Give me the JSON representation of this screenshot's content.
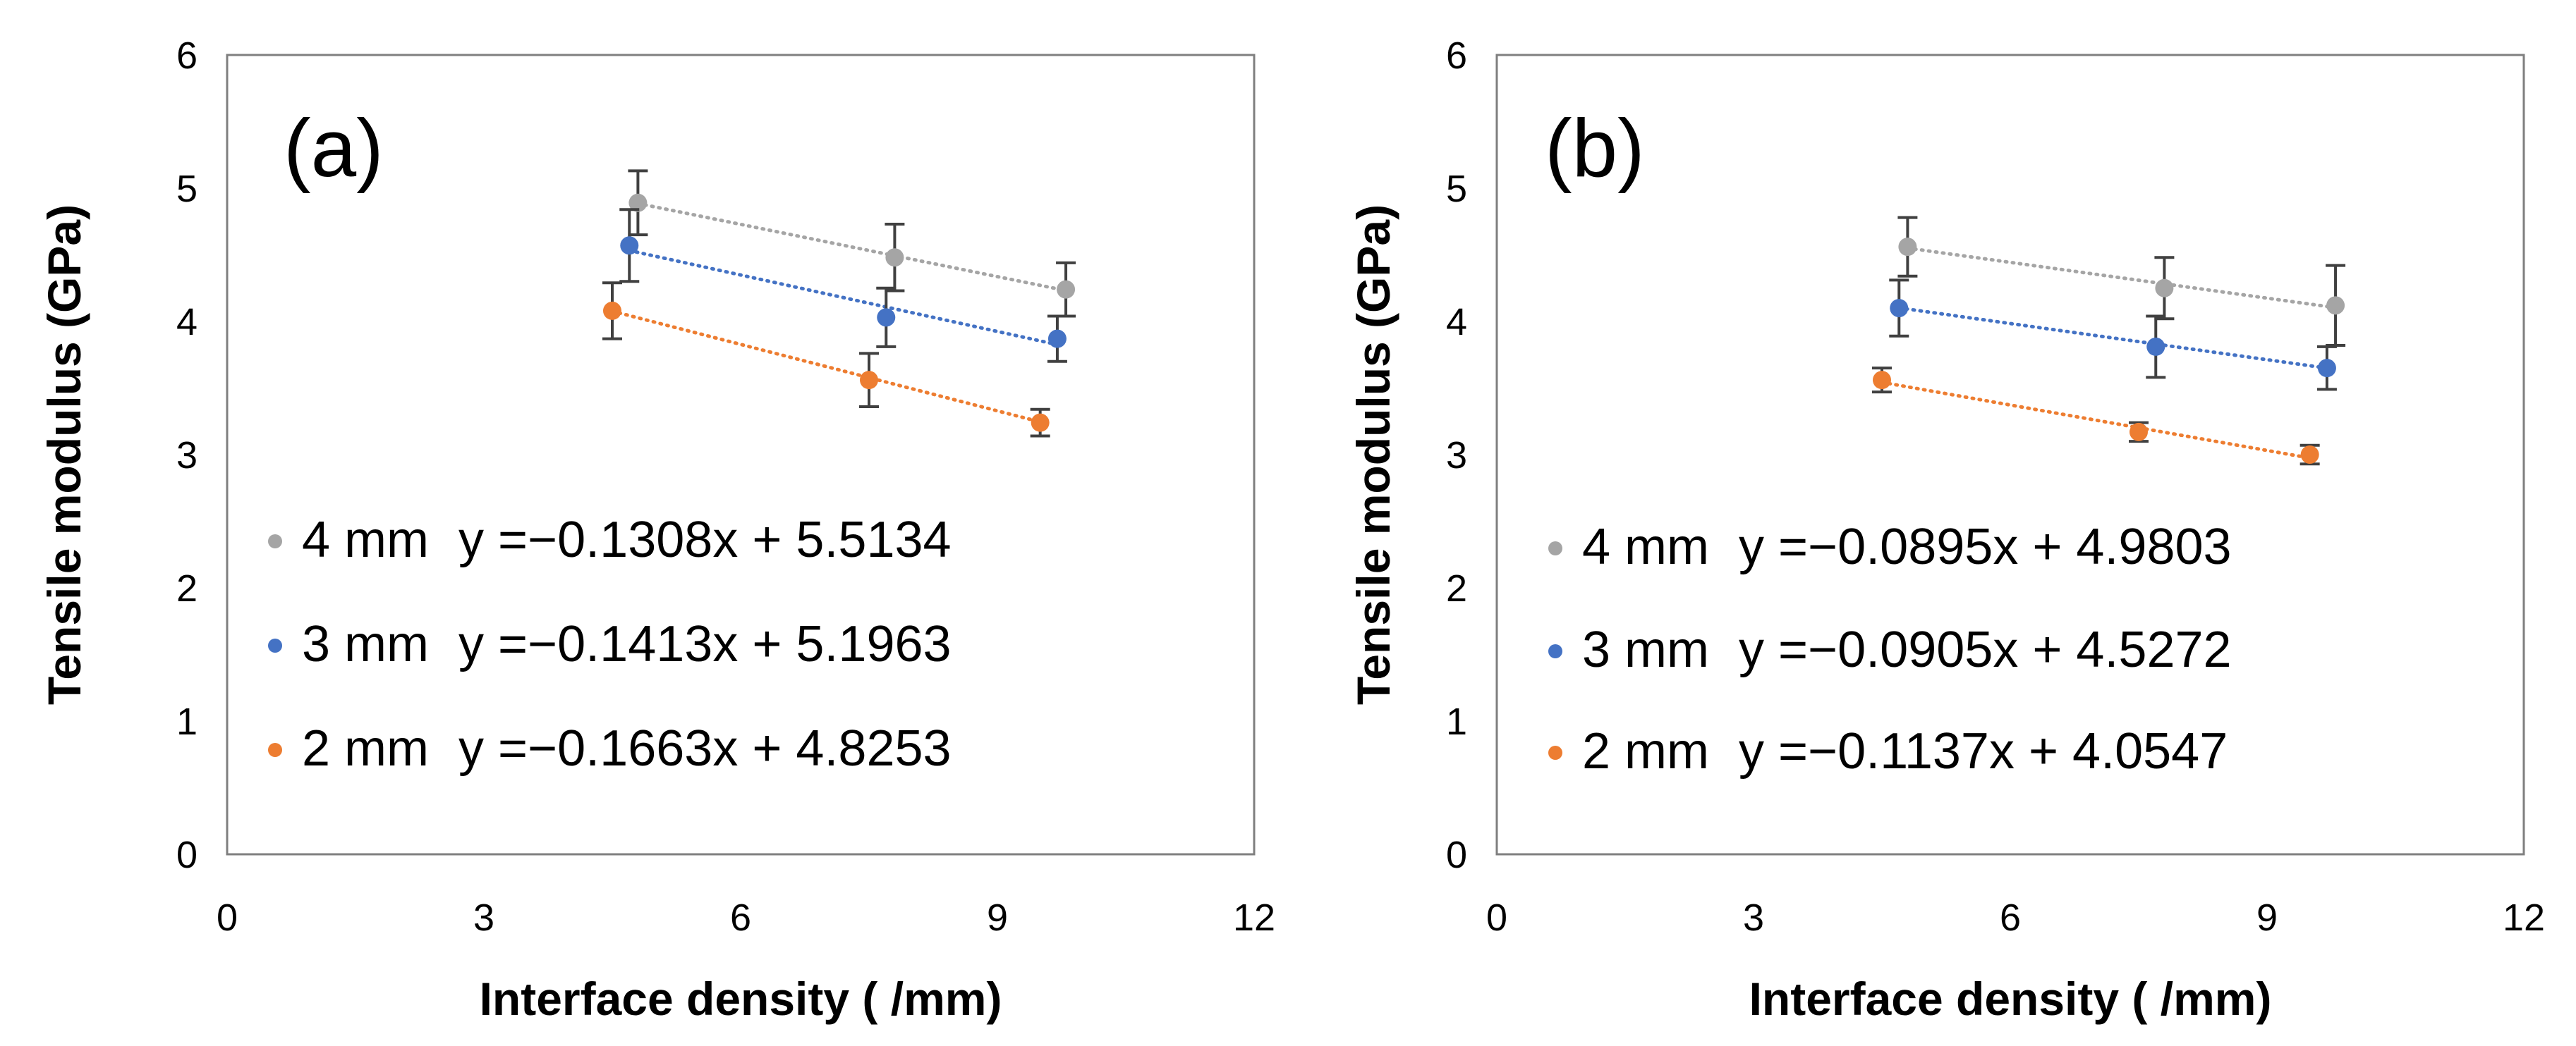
{
  "chart_data": [
    {
      "type": "scatter",
      "panel_label": "(a)",
      "xlabel": "Interface density ( /mm)",
      "ylabel": "Tensile modulus (GPa)",
      "xlim": [
        0,
        12
      ],
      "ylim": [
        0,
        6
      ],
      "xticks": [
        "0",
        "3",
        "6",
        "9",
        "12"
      ],
      "yticks": [
        "0",
        "1",
        "2",
        "3",
        "4",
        "5",
        "6"
      ],
      "grid": false,
      "legend_position": "bottom-left",
      "series": [
        {
          "name": "4 mm",
          "equation": "y =−0.1308x + 5.5134",
          "color": "#A5A5A5",
          "x": [
            4.8,
            7.8,
            9.8
          ],
          "y": [
            4.89,
            4.48,
            4.24
          ],
          "err": [
            0.24,
            0.25,
            0.2
          ],
          "fit": {
            "slope": -0.1308,
            "intercept": 5.5134
          }
        },
        {
          "name": "3 mm",
          "equation": "y =−0.1413x + 5.1963",
          "color": "#4472C4",
          "x": [
            4.7,
            7.7,
            9.7
          ],
          "y": [
            4.57,
            4.03,
            3.87
          ],
          "err": [
            0.27,
            0.22,
            0.17
          ],
          "fit": {
            "slope": -0.1413,
            "intercept": 5.1963
          }
        },
        {
          "name": "2 mm",
          "equation": "y =−0.1663x + 4.8253",
          "color": "#ED7D31",
          "x": [
            4.5,
            7.5,
            9.5
          ],
          "y": [
            4.08,
            3.56,
            3.24
          ],
          "err": [
            0.21,
            0.2,
            0.1
          ],
          "fit": {
            "slope": -0.1663,
            "intercept": 4.8253
          }
        }
      ]
    },
    {
      "type": "scatter",
      "panel_label": "(b)",
      "xlabel": "Interface density ( /mm)",
      "ylabel": "Tensile modulus (GPa)",
      "xlim": [
        0,
        12
      ],
      "ylim": [
        0,
        6
      ],
      "xticks": [
        "0",
        "3",
        "6",
        "9",
        "12"
      ],
      "yticks": [
        "0",
        "1",
        "2",
        "3",
        "4",
        "5",
        "6"
      ],
      "grid": false,
      "legend_position": "bottom-left",
      "series": [
        {
          "name": "4 mm",
          "equation": "y =−0.0895x + 4.9803",
          "color": "#A5A5A5",
          "x": [
            4.8,
            7.8,
            9.8
          ],
          "y": [
            4.56,
            4.25,
            4.12
          ],
          "err": [
            0.22,
            0.23,
            0.3
          ],
          "fit": {
            "slope": -0.0895,
            "intercept": 4.9803
          }
        },
        {
          "name": "3 mm",
          "equation": "y =−0.0905x + 4.5272",
          "color": "#4472C4",
          "x": [
            4.7,
            7.7,
            9.7
          ],
          "y": [
            4.1,
            3.81,
            3.65
          ],
          "err": [
            0.21,
            0.23,
            0.16
          ],
          "fit": {
            "slope": -0.0905,
            "intercept": 4.5272
          }
        },
        {
          "name": "2 mm",
          "equation": "y =−0.1137x + 4.0547",
          "color": "#ED7D31",
          "x": [
            4.5,
            7.5,
            9.5
          ],
          "y": [
            3.56,
            3.17,
            3.0
          ],
          "err": [
            0.09,
            0.07,
            0.07
          ],
          "fit": {
            "slope": -0.1137,
            "intercept": 4.0547
          }
        }
      ]
    }
  ]
}
